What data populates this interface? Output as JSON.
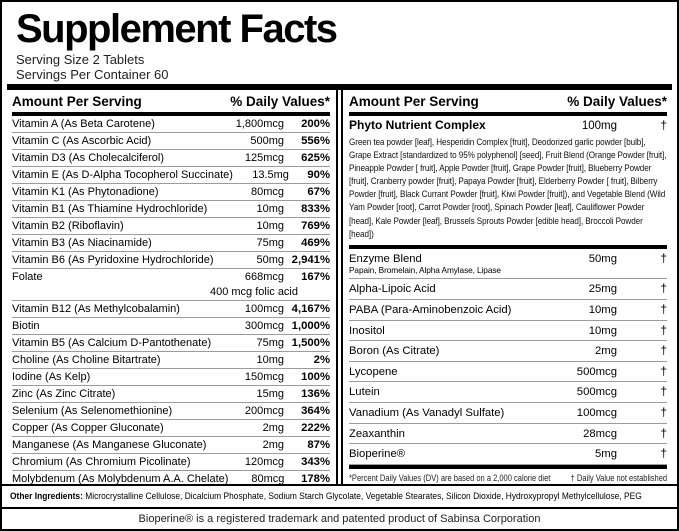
{
  "title": "Supplement Facts",
  "serving_size": "Serving Size 2 Tablets",
  "servings_per_container": "Servings Per Container 60",
  "columns": {
    "left": {
      "header": {
        "amount": "Amount Per Serving",
        "dv": "% Daily Values*"
      },
      "rows": [
        {
          "label": "Vitamin A (As Beta Carotene)",
          "amount": "1,800mcg",
          "dv": "200%"
        },
        {
          "label": "Vitamin C (As Ascorbic Acid)",
          "amount": "500mg",
          "dv": "556%"
        },
        {
          "label": "Vitamin D3 (As Cholecalciferol)",
          "amount": "125mcg",
          "dv": "625%"
        },
        {
          "label": "Vitamin E (As D-Alpha Tocopherol Succinate)",
          "amount": "13.5mg",
          "dv": "90%"
        },
        {
          "label": "Vitamin K1 (As Phytonadione)",
          "amount": "80mcg",
          "dv": "67%"
        },
        {
          "label": "Vitamin B1 (As Thiamine Hydrochloride)",
          "amount": "10mg",
          "dv": "833%"
        },
        {
          "label": "Vitamin B2 (Riboflavin)",
          "amount": "10mg",
          "dv": "769%"
        },
        {
          "label": "Vitamin B3 (As Niacinamide)",
          "amount": "75mg",
          "dv": "469%"
        },
        {
          "label": "Vitamin B6 (As Pyridoxine Hydrochloride)",
          "amount": "50mg",
          "dv": "2,941%"
        },
        {
          "label": "Folate",
          "amount": "668mcg",
          "dv": "167%",
          "sub_amount": "400 mcg folic acid"
        },
        {
          "label": "Vitamin B12 (As Methylcobalamin)",
          "amount": "100mcg",
          "dv": "4,167%"
        },
        {
          "label": "Biotin",
          "amount": "300mcg",
          "dv": "1,000%"
        },
        {
          "label": "Vitamin B5 (As Calcium D-Pantothenate)",
          "amount": "75mg",
          "dv": "1,500%"
        },
        {
          "label": "Choline (As Choline Bitartrate)",
          "amount": "10mg",
          "dv": "2%"
        },
        {
          "label": "Iodine (As Kelp)",
          "amount": "150mcg",
          "dv": "100%"
        },
        {
          "label": "Zinc (As Zinc Citrate)",
          "amount": "15mg",
          "dv": "136%"
        },
        {
          "label": "Selenium (As Selenomethionine)",
          "amount": "200mcg",
          "dv": "364%"
        },
        {
          "label": "Copper (As Copper Gluconate)",
          "amount": "2mg",
          "dv": "222%"
        },
        {
          "label": "Manganese (As Manganese Gluconate)",
          "amount": "2mg",
          "dv": "87%"
        },
        {
          "label": "Chromium (As Chromium Picolinate)",
          "amount": "120mcg",
          "dv": "343%"
        },
        {
          "label": "Molybdenum (As Molybdenum A.A. Chelate)",
          "amount": "80mcg",
          "dv": "178%"
        }
      ]
    },
    "right": {
      "header": {
        "amount": "Amount Per Serving",
        "dv": "% Daily Values*"
      },
      "complex": {
        "label": "Phyto Nutrient Complex",
        "amount": "100mg",
        "dv": "†",
        "description": "Green tea powder [leaf], Hesperidin Complex [fruit], Deodorized garlic powder [bulb], Grape Extract [standardized to 95% polyphenol] [seed], Fruit Blend (Orange Powder [fruit], Pineapple Powder [ fruit], Apple Powder [fruit], Grape Powder [fruit], Blueberry Powder [fruit], Cranberry powder [fruit], Papaya Powder [fruit], Elderberry Powder [ fruit], Bilberry Powder [fruit], Black Currant Powder [fruit], Kiwi Powder [fruit]), and Vegetable Blend (Wild Yam Powder [root], Carrot Powder [root], Spinach Powder [leaf], Cauliflower Powder [head], Kale Powder [leaf], Brussels Sprouts Powder [edible head], Broccoli Powder [head])"
      },
      "rows": [
        {
          "label": "Enzyme Blend",
          "sub_label": "Papain, Bromelain, Alpha Amylase, Lipase",
          "amount": "50mg",
          "dv": "†"
        },
        {
          "label": "Alpha-Lipoic Acid",
          "amount": "25mg",
          "dv": "†"
        },
        {
          "label": "PABA (Para-Aminobenzoic Acid)",
          "amount": "10mg",
          "dv": "†"
        },
        {
          "label": "Inositol",
          "amount": "10mg",
          "dv": "†"
        },
        {
          "label": "Boron (As Citrate)",
          "amount": "2mg",
          "dv": "†"
        },
        {
          "label": "Lycopene",
          "amount": "500mcg",
          "dv": "†"
        },
        {
          "label": "Lutein",
          "amount": "500mcg",
          "dv": "†"
        },
        {
          "label": "Vanadium (As Vanadyl Sulfate)",
          "amount": "100mcg",
          "dv": "†"
        },
        {
          "label": "Zeaxanthin",
          "amount": "28mcg",
          "dv": "†"
        },
        {
          "label": "Bioperine®",
          "amount": "5mg",
          "dv": "†"
        }
      ],
      "footnotes": {
        "percent_note": "*Percent Daily Values (DV) are based on a 2,000 calorie diet",
        "dagger_note": "† Daily Value not established"
      }
    }
  },
  "other_ingredients": {
    "label": "Other Ingredients:",
    "text": "Microcrystalline Cellulose, Dicalcium Phosphate, Sodium Starch Glycolate, Vegetable Stearates, Silicon Dioxide, Hydroxypropyl Methylcellulose, PEG"
  },
  "trademark_note": "Bioperine® is a registered trademark and patented product of Sabinsa Corporation"
}
